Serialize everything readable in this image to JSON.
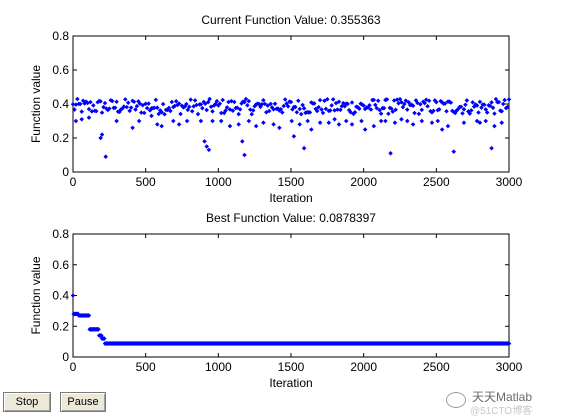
{
  "chart_data": [
    {
      "type": "scatter",
      "title": "Current Function Value: 0.355363",
      "xlabel": "Iteration",
      "ylabel": "Function value",
      "xlim": [
        0,
        3000
      ],
      "ylim": [
        0,
        0.8
      ],
      "xticks": [
        "0",
        "500",
        "1000",
        "1500",
        "2000",
        "2500",
        "3000"
      ],
      "yticks": [
        "0",
        "0.2",
        "0.4",
        "0.6",
        "0.8"
      ],
      "grid": false,
      "marker_color": "#0000ff",
      "typical_value": 0.38,
      "series": [
        {
          "x": [
            20,
            60,
            110,
            190,
            200,
            225,
            300,
            410,
            455,
            540,
            580,
            610,
            690,
            730,
            785,
            880,
            905,
            920,
            935,
            960,
            1020,
            1080,
            1140,
            1165,
            1180,
            1210,
            1260,
            1310,
            1380,
            1420,
            1505,
            1520,
            1560,
            1590,
            1615,
            1640,
            1700,
            1760,
            1800,
            1830,
            1880,
            1920,
            1985,
            2010,
            2070,
            2120,
            2150,
            2185,
            2215,
            2260,
            2300,
            2340,
            2400,
            2470,
            2510,
            2540,
            2580,
            2620,
            2690,
            2780,
            2800,
            2840,
            2880,
            2900,
            2950
          ],
          "y": [
            0.3,
            0.31,
            0.32,
            0.2,
            0.22,
            0.09,
            0.3,
            0.26,
            0.3,
            0.33,
            0.28,
            0.27,
            0.3,
            0.28,
            0.3,
            0.3,
            0.18,
            0.15,
            0.13,
            0.3,
            0.3,
            0.27,
            0.28,
            0.18,
            0.1,
            0.3,
            0.27,
            0.29,
            0.28,
            0.26,
            0.3,
            0.21,
            0.28,
            0.14,
            0.3,
            0.25,
            0.29,
            0.29,
            0.31,
            0.28,
            0.3,
            0.28,
            0.3,
            0.25,
            0.27,
            0.3,
            0.3,
            0.11,
            0.29,
            0.31,
            0.3,
            0.28,
            0.3,
            0.29,
            0.3,
            0.25,
            0.27,
            0.12,
            0.29,
            0.3,
            0.29,
            0.3,
            0.14,
            0.27,
            0.29
          ]
        }
      ]
    },
    {
      "type": "scatter",
      "title": "Best Function Value: 0.0878397",
      "xlabel": "Iteration",
      "ylabel": "Function value",
      "xlim": [
        0,
        3000
      ],
      "ylim": [
        0,
        0.8
      ],
      "xticks": [
        "0",
        "500",
        "1000",
        "1500",
        "2000",
        "2500",
        "3000"
      ],
      "yticks": [
        "0",
        "0.2",
        "0.4",
        "0.6",
        "0.8"
      ],
      "grid": false,
      "marker_color": "#0000ff",
      "steps": [
        {
          "x_start": 0,
          "x_end": 0,
          "y": 0.4
        },
        {
          "x_start": 5,
          "x_end": 35,
          "y": 0.28
        },
        {
          "x_start": 40,
          "x_end": 110,
          "y": 0.27
        },
        {
          "x_start": 115,
          "x_end": 175,
          "y": 0.18
        },
        {
          "x_start": 180,
          "x_end": 195,
          "y": 0.14
        },
        {
          "x_start": 200,
          "x_end": 215,
          "y": 0.12
        },
        {
          "x_start": 220,
          "x_end": 3000,
          "y": 0.0878
        }
      ]
    }
  ],
  "controls": {
    "stop_label": "Stop",
    "pause_label": "Pause"
  },
  "watermark": {
    "text": "天天Matlab",
    "sub": "@51CTO博客"
  }
}
